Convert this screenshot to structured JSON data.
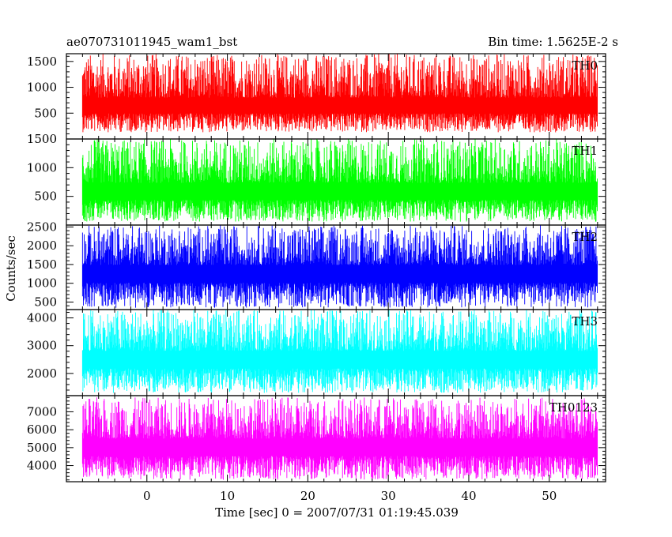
{
  "header": {
    "title_left": "ae070731011945_wam1_bst",
    "title_right": "Bin time: 1.5625E-2 s"
  },
  "chart_data": {
    "type": "line",
    "title": "ae070731011945_wam1_bst",
    "subtitle": "Bin time: 1.5625E-2 s",
    "xlabel": "Time [sec] 0 = 2007/07/31 01:19:45.039",
    "ylabel": "Counts/sec",
    "xlim": [
      -10,
      57
    ],
    "x_data_range": [
      -8,
      56
    ],
    "x_ticks": [
      0,
      10,
      20,
      30,
      40,
      50
    ],
    "grid": false,
    "legend": "none",
    "panels": [
      {
        "name": "TH0",
        "color": "#ff0000",
        "ylim": [
          0,
          1650
        ],
        "y_ticks": [
          500,
          1000,
          1500
        ],
        "mean": 650,
        "low": 130,
        "high": 1650
      },
      {
        "name": "TH1",
        "color": "#00ff00",
        "ylim": [
          0,
          1500
        ],
        "y_ticks": [
          500,
          1000,
          1500
        ],
        "mean": 600,
        "low": 60,
        "high": 1500
      },
      {
        "name": "TH2",
        "color": "#0000ff",
        "ylim": [
          300,
          2550
        ],
        "y_ticks": [
          500,
          1000,
          1500,
          2000,
          2500
        ],
        "mean": 1300,
        "low": 350,
        "high": 2550
      },
      {
        "name": "TH3",
        "color": "#00ffff",
        "ylim": [
          1200,
          4300
        ],
        "y_ticks": [
          2000,
          3000,
          4000
        ],
        "mean": 2550,
        "low": 1300,
        "high": 4300
      },
      {
        "name": "TH0123",
        "color": "#ff00ff",
        "ylim": [
          3100,
          7900
        ],
        "y_ticks": [
          4000,
          5000,
          6000,
          7000
        ],
        "mean": 5100,
        "low": 3200,
        "high": 7800
      }
    ]
  }
}
